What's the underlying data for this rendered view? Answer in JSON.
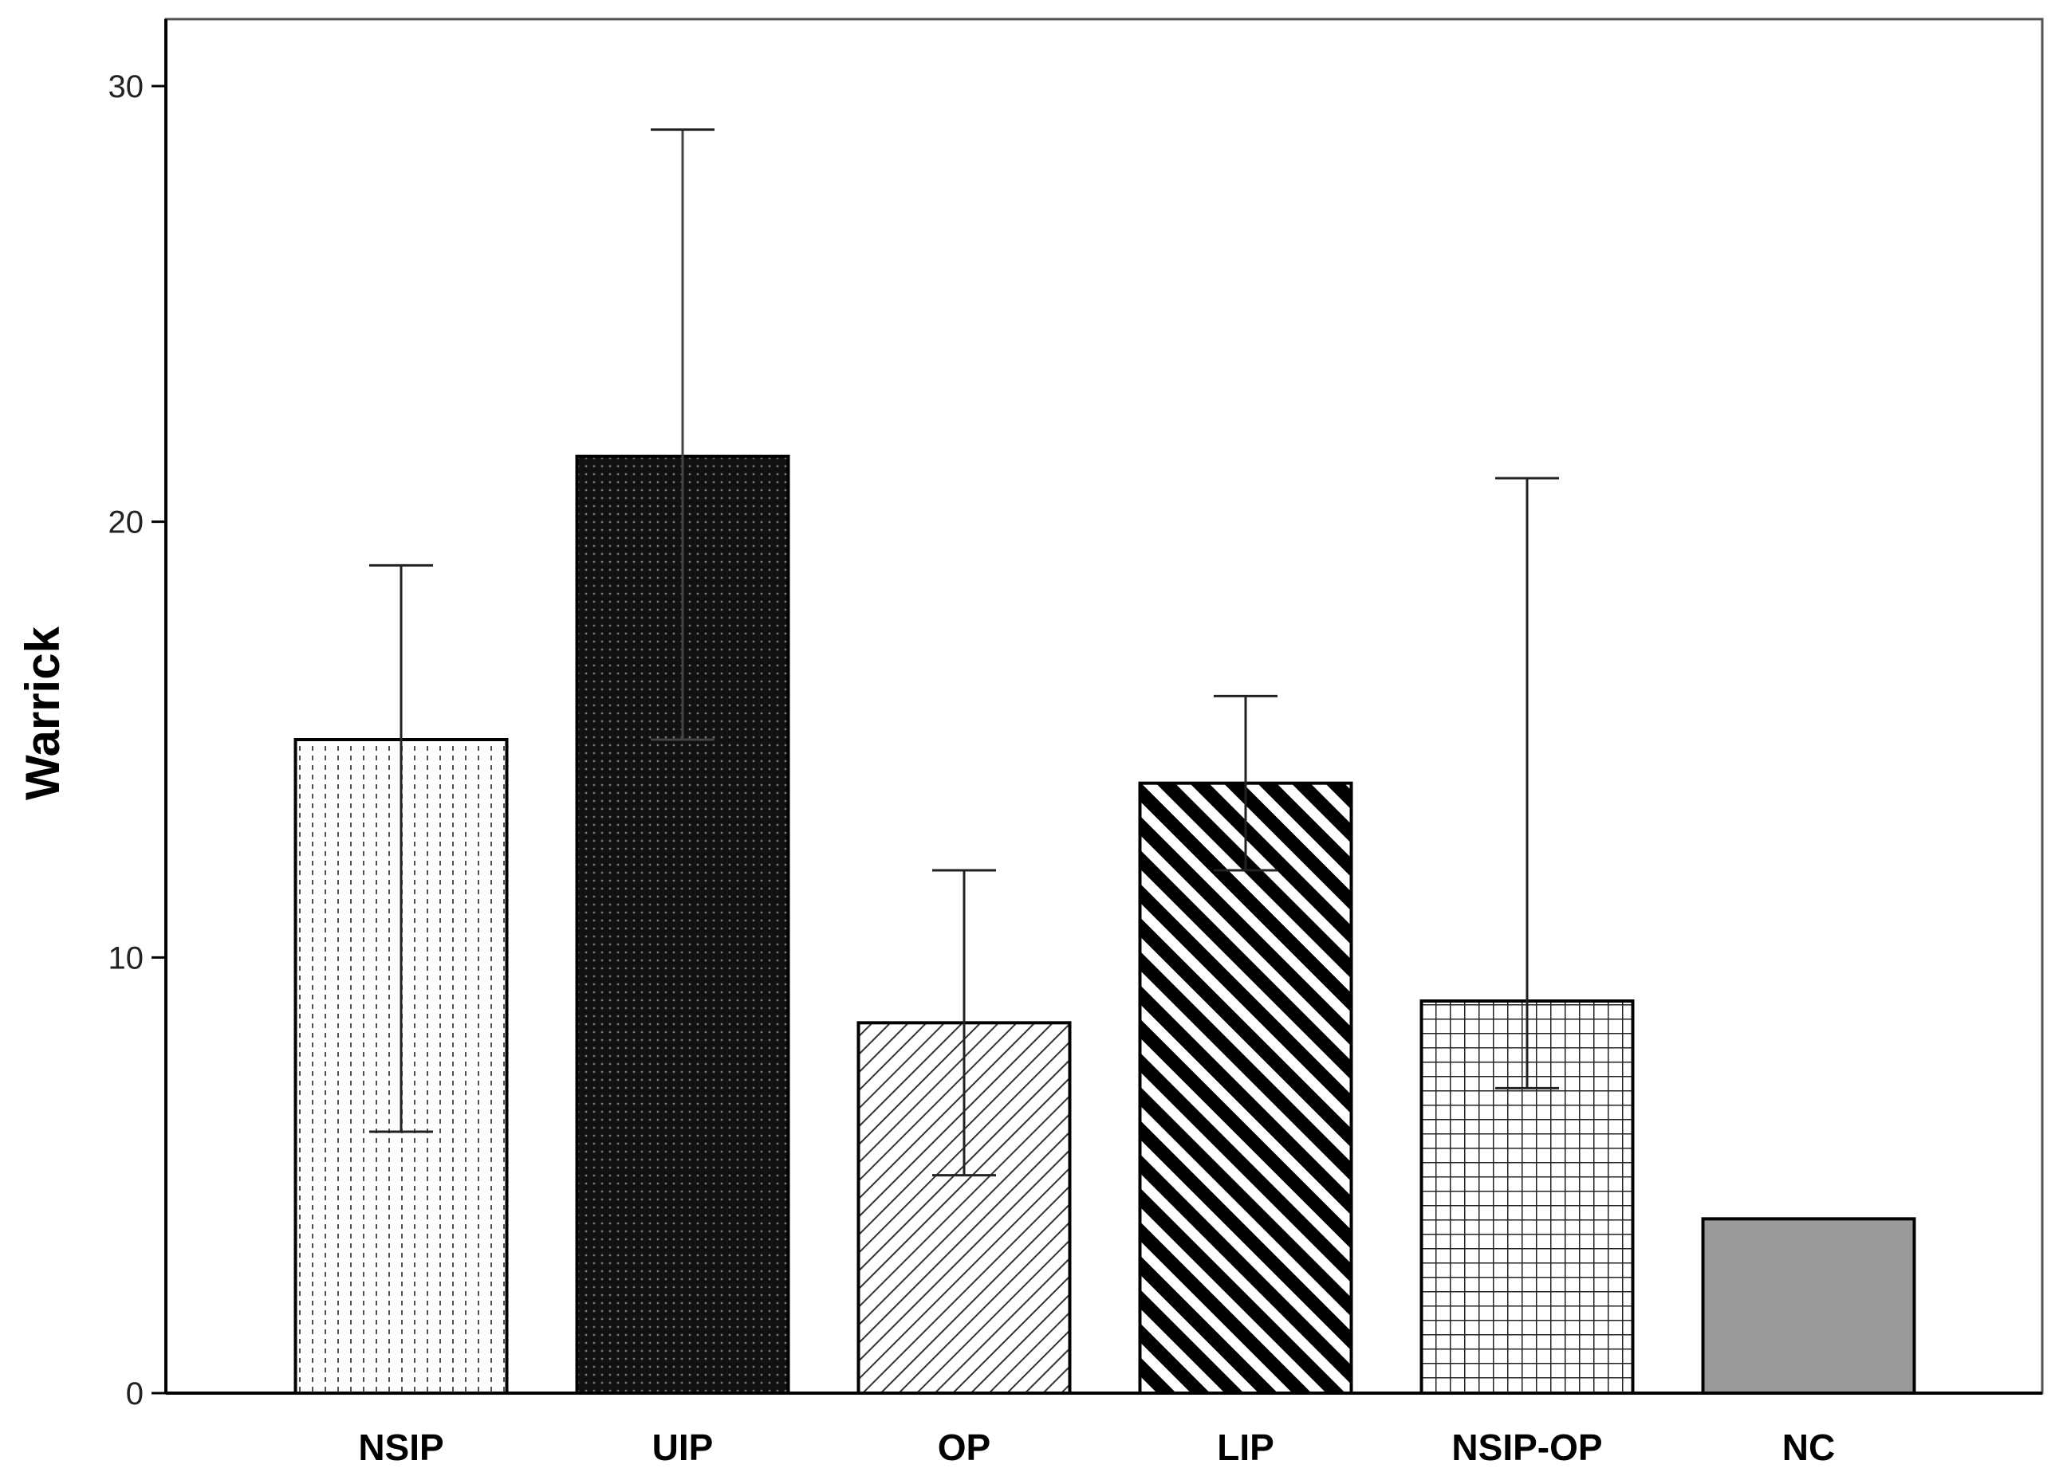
{
  "chart_data": {
    "type": "bar",
    "title": "",
    "xlabel": "",
    "ylabel": "Warrick",
    "ylim": [
      0,
      30
    ],
    "yticks": [
      0,
      10,
      20,
      30
    ],
    "grid": false,
    "categories": [
      "NSIP",
      "UIP",
      "OP",
      "LIP",
      "NSIP-OP",
      "NC"
    ],
    "values": [
      15,
      21.5,
      8.5,
      14,
      9,
      4
    ],
    "error_low": [
      6,
      15,
      5,
      12,
      7,
      null
    ],
    "error_high": [
      19,
      29,
      12,
      16,
      21,
      null
    ],
    "patterns": [
      "dotted-vertical",
      "dark-dotted",
      "diagonal-fine",
      "diagonal-bold",
      "grid",
      "solid-gray"
    ],
    "colors": {
      "axis": "#000000",
      "frame": "#555555",
      "nc_fill": "#9a9a9a",
      "uip_fill": "#1a1a1a"
    }
  }
}
